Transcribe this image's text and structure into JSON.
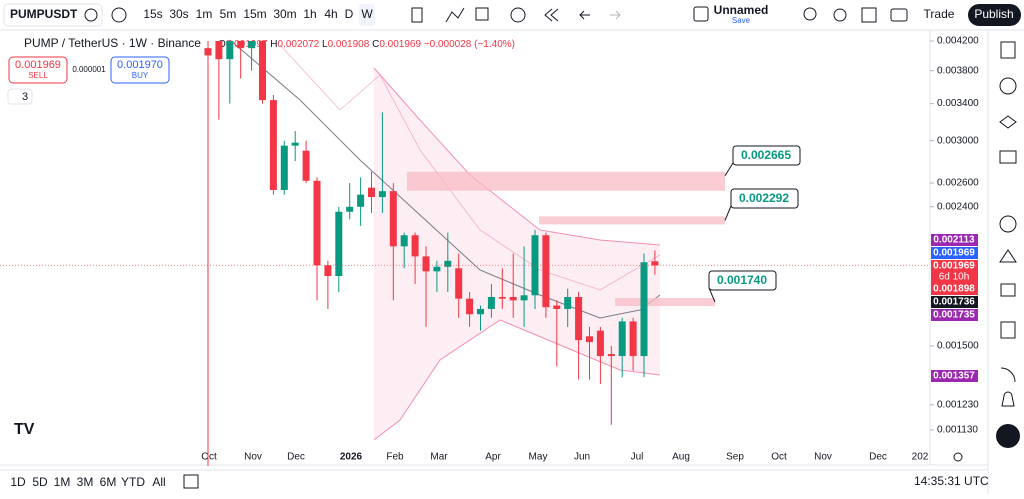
{
  "toolbar": {
    "symbol": "PUMPUSDT",
    "intervals": [
      "15s",
      "30s",
      "1m",
      "5m",
      "15m",
      "30m",
      "1h",
      "4h",
      "D",
      "W"
    ],
    "layout_name": "Unnamed",
    "save": "Save",
    "trade": "Trade",
    "publish": "Publish"
  },
  "legend": {
    "title": "PUMP / TetherUS · 1W · Binance",
    "o_label": "O",
    "o": "0.001997",
    "h_label": "H",
    "h": "0.002072",
    "l_label": "L",
    "l": "0.001908",
    "c_label": "C",
    "c": "0.001969",
    "change": "−0.000028 (−1.40%)"
  },
  "order": {
    "sell_price": "0.001969",
    "sell": "SELL",
    "spread": "0.000001",
    "buy_price": "0.001970",
    "buy": "BUY",
    "indicators": "3"
  },
  "chart": {
    "type": "candlestick",
    "log": true,
    "ylim": [
      0.001074,
      0.004344
    ],
    "up_color": "#089981",
    "down_color": "#f23645",
    "yticks": [
      {
        "value": 0.0042,
        "label": "0.004200"
      },
      {
        "value": 0.0038,
        "label": "0.003800"
      },
      {
        "value": 0.0034,
        "label": "0.003400"
      },
      {
        "value": 0.003,
        "label": "0.003000"
      },
      {
        "value": 0.0026,
        "label": "0.002600"
      },
      {
        "value": 0.0024,
        "label": "0.002400"
      },
      {
        "value": 0.0015,
        "label": "0.001500"
      },
      {
        "value": 0.00123,
        "label": "0.001230"
      },
      {
        "value": 0.00113,
        "label": "0.001130"
      }
    ],
    "xlabels": [
      "Oct",
      "Nov",
      "Dec",
      "2026",
      "Feb",
      "Mar",
      "Apr",
      "May",
      "Jun",
      "Jul",
      "Aug",
      "Sep",
      "Oct",
      "Nov",
      "Dec",
      "202"
    ],
    "candles": [
      {
        "open": 0.0041,
        "high": 0.0042,
        "low": 0.001,
        "close": 0.004
      },
      {
        "open": 0.0042,
        "high": 0.0042,
        "low": 0.00322,
        "close": 0.00395
      },
      {
        "open": 0.00395,
        "high": 0.0042,
        "low": 0.0034,
        "close": 0.0042
      },
      {
        "open": 0.0042,
        "high": 0.0042,
        "low": 0.0037,
        "close": 0.0041
      },
      {
        "open": 0.0041,
        "high": 0.0042,
        "low": 0.0038,
        "close": 0.0042
      },
      {
        "open": 0.0042,
        "high": 0.0042,
        "low": 0.0034,
        "close": 0.00344
      },
      {
        "open": 0.00344,
        "high": 0.0035,
        "low": 0.0025,
        "close": 0.00254
      },
      {
        "open": 0.00254,
        "high": 0.003,
        "low": 0.0025,
        "close": 0.00295
      },
      {
        "open": 0.00295,
        "high": 0.0031,
        "low": 0.0028,
        "close": 0.00298
      },
      {
        "open": 0.0029,
        "high": 0.003,
        "low": 0.0026,
        "close": 0.00262
      },
      {
        "open": 0.00262,
        "high": 0.00265,
        "low": 0.00175,
        "close": 0.00197
      },
      {
        "open": 0.00197,
        "high": 0.002,
        "low": 0.0017,
        "close": 0.0019
      },
      {
        "open": 0.0019,
        "high": 0.0024,
        "low": 0.0018,
        "close": 0.00236
      },
      {
        "open": 0.00236,
        "high": 0.0026,
        "low": 0.0023,
        "close": 0.0024
      },
      {
        "open": 0.0024,
        "high": 0.00265,
        "low": 0.00225,
        "close": 0.0025
      },
      {
        "open": 0.00256,
        "high": 0.0027,
        "low": 0.00235,
        "close": 0.00248
      },
      {
        "open": 0.00248,
        "high": 0.0033,
        "low": 0.00235,
        "close": 0.00253
      },
      {
        "open": 0.00253,
        "high": 0.0026,
        "low": 0.00175,
        "close": 0.0021
      },
      {
        "open": 0.0021,
        "high": 0.0022,
        "low": 0.00195,
        "close": 0.00218
      },
      {
        "open": 0.00218,
        "high": 0.0022,
        "low": 0.00185,
        "close": 0.00203
      },
      {
        "open": 0.00203,
        "high": 0.0021,
        "low": 0.0016,
        "close": 0.00193
      },
      {
        "open": 0.00193,
        "high": 0.002,
        "low": 0.0018,
        "close": 0.00196
      },
      {
        "open": 0.00196,
        "high": 0.0022,
        "low": 0.0018,
        "close": 0.002
      },
      {
        "open": 0.00195,
        "high": 0.00205,
        "low": 0.00165,
        "close": 0.00176
      },
      {
        "open": 0.00176,
        "high": 0.0018,
        "low": 0.0016,
        "close": 0.00167
      },
      {
        "open": 0.00167,
        "high": 0.00172,
        "low": 0.00158,
        "close": 0.0017
      },
      {
        "open": 0.0017,
        "high": 0.00185,
        "low": 0.00165,
        "close": 0.00177
      },
      {
        "open": 0.00177,
        "high": 0.00195,
        "low": 0.0017,
        "close": 0.00176
      },
      {
        "open": 0.00177,
        "high": 0.00205,
        "low": 0.00165,
        "close": 0.00175
      },
      {
        "open": 0.00175,
        "high": 0.0021,
        "low": 0.0016,
        "close": 0.00178
      },
      {
        "open": 0.00178,
        "high": 0.00222,
        "low": 0.0017,
        "close": 0.00218
      },
      {
        "open": 0.00218,
        "high": 0.0022,
        "low": 0.00165,
        "close": 0.00171
      },
      {
        "open": 0.00172,
        "high": 0.00175,
        "low": 0.0014,
        "close": 0.0017
      },
      {
        "open": 0.0017,
        "high": 0.00182,
        "low": 0.0016,
        "close": 0.00177
      },
      {
        "open": 0.00177,
        "high": 0.0018,
        "low": 0.00134,
        "close": 0.00153
      },
      {
        "open": 0.00155,
        "high": 0.0016,
        "low": 0.00134,
        "close": 0.00152
      },
      {
        "open": 0.00158,
        "high": 0.0016,
        "low": 0.00132,
        "close": 0.00145
      },
      {
        "open": 0.00146,
        "high": 0.0015,
        "low": 0.00115,
        "close": 0.00145
      },
      {
        "open": 0.00145,
        "high": 0.00165,
        "low": 0.00135,
        "close": 0.00163
      },
      {
        "open": 0.00163,
        "high": 0.00165,
        "low": 0.00138,
        "close": 0.00145
      },
      {
        "open": 0.00145,
        "high": 0.00205,
        "low": 0.00135,
        "close": 0.00199
      },
      {
        "open": 0.001997,
        "high": 0.002072,
        "low": 0.001908,
        "close": 0.001969
      }
    ],
    "levels": [
      {
        "value": 0.002665,
        "label": "0.002665"
      },
      {
        "value": 0.002292,
        "label": "0.002292"
      },
      {
        "value": 0.00174,
        "label": "0.001740"
      }
    ],
    "price_tags": [
      {
        "label": "0.002113",
        "color": "#9c27b0"
      },
      {
        "label": "0.001969",
        "color": "#2962ff"
      },
      {
        "label": "0.001969",
        "sub": "6d 10h",
        "color": "#f23645"
      },
      {
        "label": "0.001898",
        "color": "#f23645"
      },
      {
        "label": "0.001736",
        "color": "#131722"
      },
      {
        "label": "0.001735",
        "color": "#9c27b0"
      },
      {
        "label": "0.001357",
        "color": "#9c27b0"
      }
    ]
  },
  "bottom": {
    "ranges": [
      "1D",
      "5D",
      "1M",
      "3M",
      "6M",
      "YTD",
      "All"
    ],
    "clock": "14:35:31 UTC"
  }
}
